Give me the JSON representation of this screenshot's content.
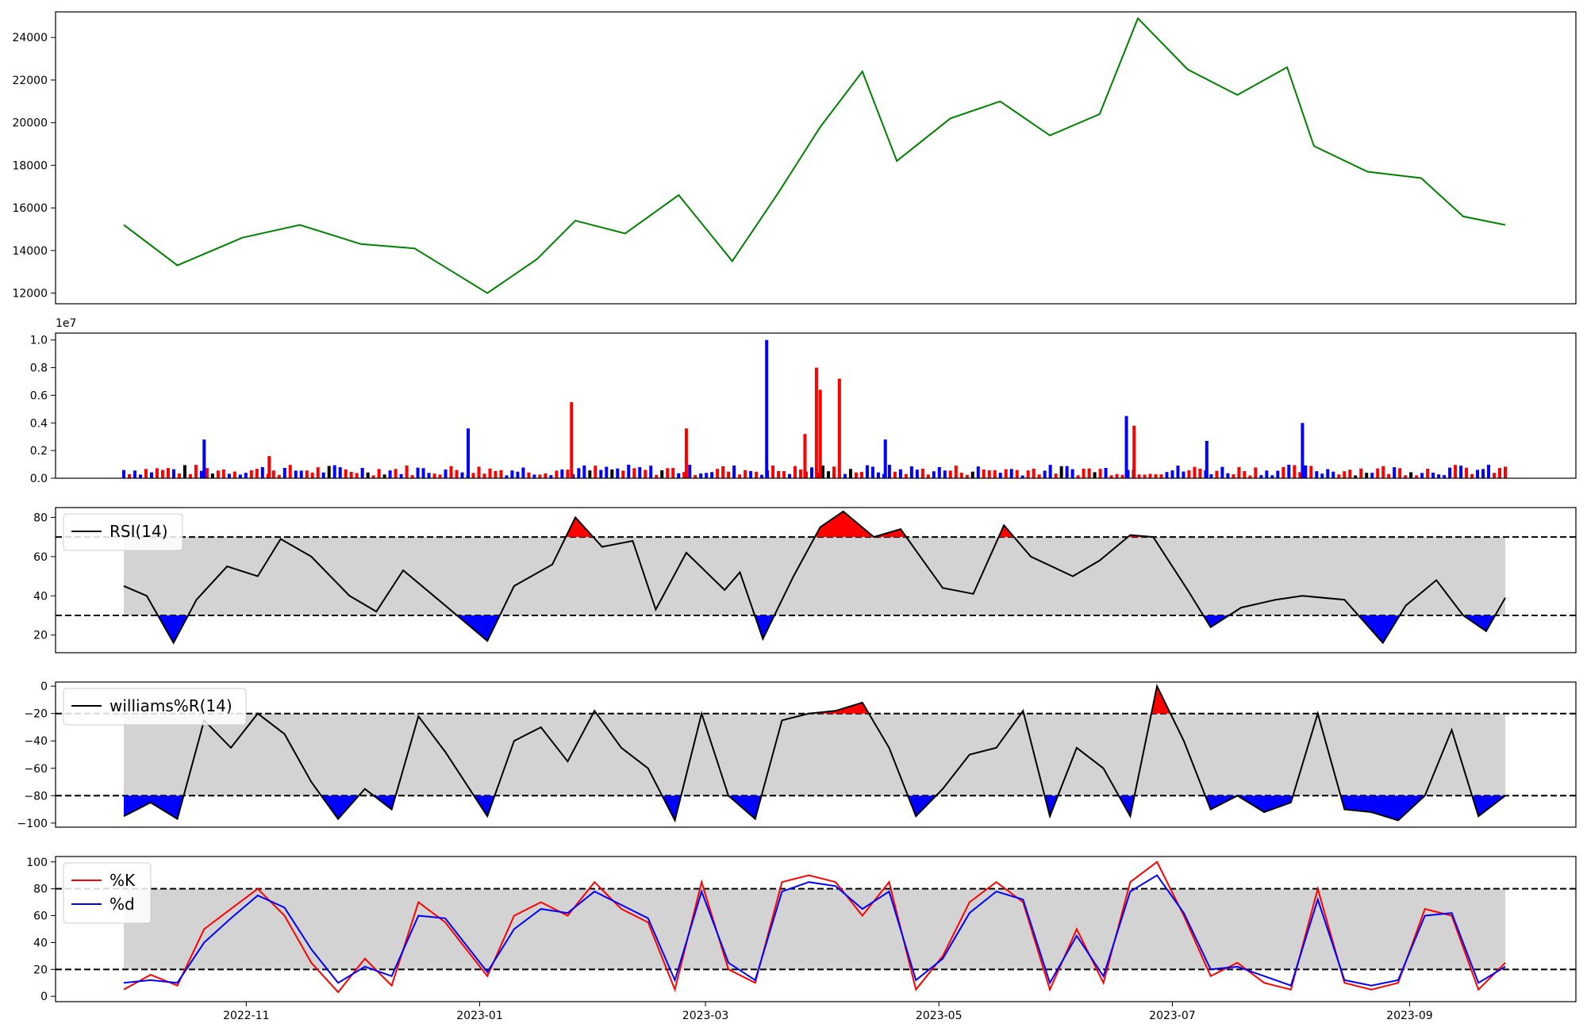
{
  "chart_data": [
    {
      "type": "line",
      "panel": "price",
      "color": "#008000",
      "ylim": [
        11500,
        25200
      ],
      "yticks": [
        12000,
        14000,
        16000,
        18000,
        20000,
        22000,
        24000
      ],
      "ytick_labels": [
        "12000",
        "14000",
        "16000",
        "18000",
        "20000",
        "22000",
        "24000"
      ],
      "x": [
        "2022-09-30",
        "2022-10-14",
        "2022-10-31",
        "2022-11-15",
        "2022-12-01",
        "2022-12-15",
        "2023-01-03",
        "2023-01-16",
        "2023-01-26",
        "2023-02-08",
        "2023-02-22",
        "2023-03-08",
        "2023-03-20",
        "2023-03-31",
        "2023-04-11",
        "2023-04-20",
        "2023-05-04",
        "2023-05-17",
        "2023-05-30",
        "2023-06-12",
        "2023-06-22",
        "2023-07-05",
        "2023-07-18",
        "2023-07-31",
        "2023-08-07",
        "2023-08-21",
        "2023-09-04",
        "2023-09-15",
        "2023-09-26"
      ],
      "values": [
        15200,
        13300,
        14600,
        15200,
        14300,
        14100,
        12000,
        13600,
        15400,
        14800,
        16600,
        13500,
        16700,
        19800,
        22400,
        18200,
        20200,
        21000,
        19400,
        20400,
        24900,
        22500,
        21300,
        22600,
        18900,
        17700,
        17400,
        15600,
        15200
      ]
    },
    {
      "type": "bar",
      "panel": "volume",
      "exponent_label": "1e7",
      "ylim": [
        0,
        1.05
      ],
      "yticks": [
        0.0,
        0.2,
        0.4,
        0.6,
        0.8,
        1.0
      ],
      "ytick_labels": [
        "0.0",
        "0.2",
        "0.4",
        "0.6",
        "0.8",
        "1.0"
      ],
      "up_color": "#ff0000",
      "down_color": "#0000ff",
      "flat_color": "#000000",
      "spikes": [
        {
          "x": "2022-10-21",
          "value": 0.28,
          "color": "#0000ff"
        },
        {
          "x": "2022-11-07",
          "value": 0.16,
          "color": "#ff0000"
        },
        {
          "x": "2022-12-29",
          "value": 0.36,
          "color": "#0000ff"
        },
        {
          "x": "2023-01-25",
          "value": 0.55,
          "color": "#ff0000"
        },
        {
          "x": "2023-02-24",
          "value": 0.36,
          "color": "#ff0000"
        },
        {
          "x": "2023-03-17",
          "value": 1.0,
          "color": "#0000ff"
        },
        {
          "x": "2023-03-27",
          "value": 0.32,
          "color": "#ff0000"
        },
        {
          "x": "2023-03-30",
          "value": 0.8,
          "color": "#ff0000"
        },
        {
          "x": "2023-03-31",
          "value": 0.64,
          "color": "#ff0000"
        },
        {
          "x": "2023-04-05",
          "value": 0.72,
          "color": "#ff0000"
        },
        {
          "x": "2023-04-17",
          "value": 0.28,
          "color": "#0000ff"
        },
        {
          "x": "2023-06-19",
          "value": 0.45,
          "color": "#0000ff"
        },
        {
          "x": "2023-06-21",
          "value": 0.38,
          "color": "#ff0000"
        },
        {
          "x": "2023-07-10",
          "value": 0.27,
          "color": "#0000ff"
        },
        {
          "x": "2023-08-04",
          "value": 0.4,
          "color": "#0000ff"
        }
      ]
    },
    {
      "type": "line",
      "panel": "rsi",
      "legend": [
        "RSI(14)"
      ],
      "color": "#000000",
      "ylim": [
        11,
        85
      ],
      "yticks": [
        20,
        40,
        60,
        80
      ],
      "ytick_labels": [
        "20",
        "40",
        "60",
        "80"
      ],
      "upper_threshold": 70,
      "lower_threshold": 30,
      "x": [
        "2022-09-30",
        "2022-10-06",
        "2022-10-13",
        "2022-10-19",
        "2022-10-27",
        "2022-11-04",
        "2022-11-10",
        "2022-11-18",
        "2022-11-28",
        "2022-12-05",
        "2022-12-12",
        "2022-12-20",
        "2023-01-03",
        "2023-01-10",
        "2023-01-20",
        "2023-01-26",
        "2023-02-02",
        "2023-02-10",
        "2023-02-16",
        "2023-02-24",
        "2023-03-06",
        "2023-03-10",
        "2023-03-16",
        "2023-03-24",
        "2023-03-31",
        "2023-04-06",
        "2023-04-14",
        "2023-04-21",
        "2023-05-02",
        "2023-05-10",
        "2023-05-18",
        "2023-05-25",
        "2023-06-05",
        "2023-06-12",
        "2023-06-20",
        "2023-06-26",
        "2023-07-05",
        "2023-07-11",
        "2023-07-19",
        "2023-07-28",
        "2023-08-04",
        "2023-08-15",
        "2023-08-25",
        "2023-08-31",
        "2023-09-08",
        "2023-09-15",
        "2023-09-21",
        "2023-09-26"
      ],
      "values": [
        45,
        40,
        16,
        38,
        55,
        50,
        69,
        60,
        40,
        32,
        53,
        40,
        17,
        45,
        56,
        80,
        65,
        68,
        33,
        62,
        43,
        52,
        18,
        50,
        75,
        83,
        70,
        74,
        44,
        41,
        76,
        60,
        50,
        58,
        71,
        70,
        43,
        24,
        34,
        38,
        40,
        38,
        16,
        35,
        48,
        30,
        22,
        39
      ]
    },
    {
      "type": "line",
      "panel": "williams_r",
      "legend": [
        "williams%R(14)"
      ],
      "color": "#000000",
      "ylim": [
        -103,
        3
      ],
      "yticks": [
        -100,
        -80,
        -60,
        -40,
        -20,
        0
      ],
      "ytick_labels": [
        "−100",
        "−80",
        "−60",
        "−40",
        "−20",
        "0"
      ],
      "upper_threshold": -20,
      "lower_threshold": -80,
      "x": [
        "2022-09-30",
        "2022-10-07",
        "2022-10-14",
        "2022-10-21",
        "2022-10-28",
        "2022-11-04",
        "2022-11-11",
        "2022-11-18",
        "2022-11-25",
        "2022-12-02",
        "2022-12-09",
        "2022-12-16",
        "2022-12-23",
        "2023-01-03",
        "2023-01-10",
        "2023-01-17",
        "2023-01-24",
        "2023-01-31",
        "2023-02-07",
        "2023-02-14",
        "2023-02-21",
        "2023-02-28",
        "2023-03-07",
        "2023-03-14",
        "2023-03-21",
        "2023-03-28",
        "2023-04-04",
        "2023-04-11",
        "2023-04-18",
        "2023-04-25",
        "2023-05-02",
        "2023-05-09",
        "2023-05-16",
        "2023-05-23",
        "2023-05-30",
        "2023-06-06",
        "2023-06-13",
        "2023-06-20",
        "2023-06-27",
        "2023-07-04",
        "2023-07-11",
        "2023-07-18",
        "2023-07-25",
        "2023-08-01",
        "2023-08-08",
        "2023-08-15",
        "2023-08-22",
        "2023-08-29",
        "2023-09-05",
        "2023-09-12",
        "2023-09-19",
        "2023-09-26"
      ],
      "values": [
        -95,
        -85,
        -97,
        -25,
        -45,
        -20,
        -35,
        -70,
        -97,
        -75,
        -90,
        -22,
        -48,
        -95,
        -40,
        -30,
        -55,
        -18,
        -45,
        -60,
        -98,
        -20,
        -80,
        -97,
        -25,
        -20,
        -18,
        -12,
        -45,
        -95,
        -75,
        -50,
        -45,
        -18,
        -95,
        -45,
        -60,
        -95,
        0,
        -40,
        -90,
        -80,
        -92,
        -85,
        -20,
        -90,
        -92,
        -98,
        -80,
        -32,
        -95,
        -80
      ]
    },
    {
      "type": "line",
      "panel": "stochastic",
      "legend": [
        "%K",
        "%d"
      ],
      "ylim": [
        -4,
        104
      ],
      "yticks": [
        0,
        20,
        40,
        60,
        80,
        100
      ],
      "ytick_labels": [
        "0",
        "20",
        "40",
        "60",
        "80",
        "100"
      ],
      "upper_threshold": 80,
      "lower_threshold": 20,
      "x": [
        "2022-09-30",
        "2022-10-07",
        "2022-10-14",
        "2022-10-21",
        "2022-10-28",
        "2022-11-04",
        "2022-11-11",
        "2022-11-18",
        "2022-11-25",
        "2022-12-02",
        "2022-12-09",
        "2022-12-16",
        "2022-12-23",
        "2023-01-03",
        "2023-01-10",
        "2023-01-17",
        "2023-01-24",
        "2023-01-31",
        "2023-02-07",
        "2023-02-14",
        "2023-02-21",
        "2023-02-28",
        "2023-03-07",
        "2023-03-14",
        "2023-03-21",
        "2023-03-28",
        "2023-04-04",
        "2023-04-11",
        "2023-04-18",
        "2023-04-25",
        "2023-05-02",
        "2023-05-09",
        "2023-05-16",
        "2023-05-23",
        "2023-05-30",
        "2023-06-06",
        "2023-06-13",
        "2023-06-20",
        "2023-06-27",
        "2023-07-04",
        "2023-07-11",
        "2023-07-18",
        "2023-07-25",
        "2023-08-01",
        "2023-08-08",
        "2023-08-15",
        "2023-08-22",
        "2023-08-29",
        "2023-09-05",
        "2023-09-12",
        "2023-09-19",
        "2023-09-26"
      ],
      "series": [
        {
          "name": "%K",
          "color": "#ff0000",
          "values": [
            5,
            16,
            8,
            50,
            65,
            80,
            60,
            25,
            3,
            28,
            8,
            70,
            55,
            15,
            60,
            70,
            60,
            85,
            65,
            55,
            5,
            85,
            20,
            10,
            85,
            90,
            85,
            60,
            85,
            5,
            30,
            70,
            85,
            70,
            5,
            50,
            10,
            85,
            100,
            60,
            15,
            25,
            10,
            5,
            80,
            10,
            5,
            10,
            65,
            60,
            5,
            25
          ]
        },
        {
          "name": "%d",
          "color": "#0000ff",
          "values": [
            10,
            12,
            10,
            40,
            58,
            75,
            66,
            35,
            10,
            22,
            15,
            60,
            58,
            18,
            50,
            65,
            62,
            78,
            68,
            58,
            12,
            78,
            25,
            12,
            78,
            85,
            82,
            65,
            78,
            12,
            28,
            62,
            78,
            72,
            10,
            45,
            15,
            78,
            90,
            62,
            20,
            22,
            15,
            8,
            72,
            12,
            8,
            12,
            60,
            62,
            10,
            22
          ]
        }
      ]
    }
  ],
  "x_axis": {
    "tick_dates": [
      "2022-11-01",
      "2023-01-01",
      "2023-03-01",
      "2023-05-01",
      "2023-07-01",
      "2023-09-01"
    ],
    "tick_labels": [
      "2022-11",
      "2023-01",
      "2023-03",
      "2023-05",
      "2023-07",
      "2023-09"
    ]
  }
}
